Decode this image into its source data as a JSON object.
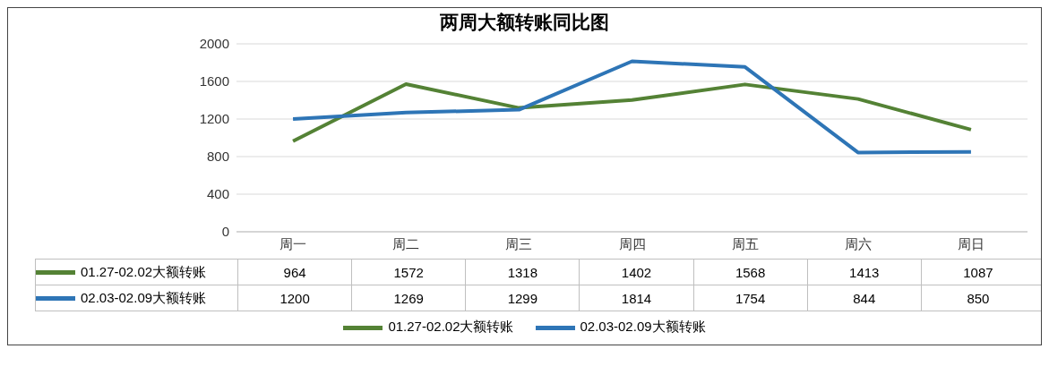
{
  "chart_data": {
    "type": "line",
    "title": "两周大额转账同比图",
    "categories": [
      "周一",
      "周二",
      "周三",
      "周四",
      "周五",
      "周六",
      "周日"
    ],
    "series": [
      {
        "name": "01.27-02.02大额转账",
        "color": "#548235",
        "values": [
          964,
          1572,
          1318,
          1402,
          1568,
          1413,
          1087
        ]
      },
      {
        "name": "02.03-02.09大额转账",
        "color": "#2e75b6",
        "values": [
          1200,
          1269,
          1299,
          1814,
          1754,
          844,
          850
        ]
      }
    ],
    "ylim": [
      0,
      2000
    ],
    "yticks": [
      0,
      400,
      800,
      1200,
      1600,
      2000
    ],
    "grid": "y",
    "data_labels": true,
    "legend": "bottom",
    "marker": "none",
    "line_style": "solid"
  }
}
